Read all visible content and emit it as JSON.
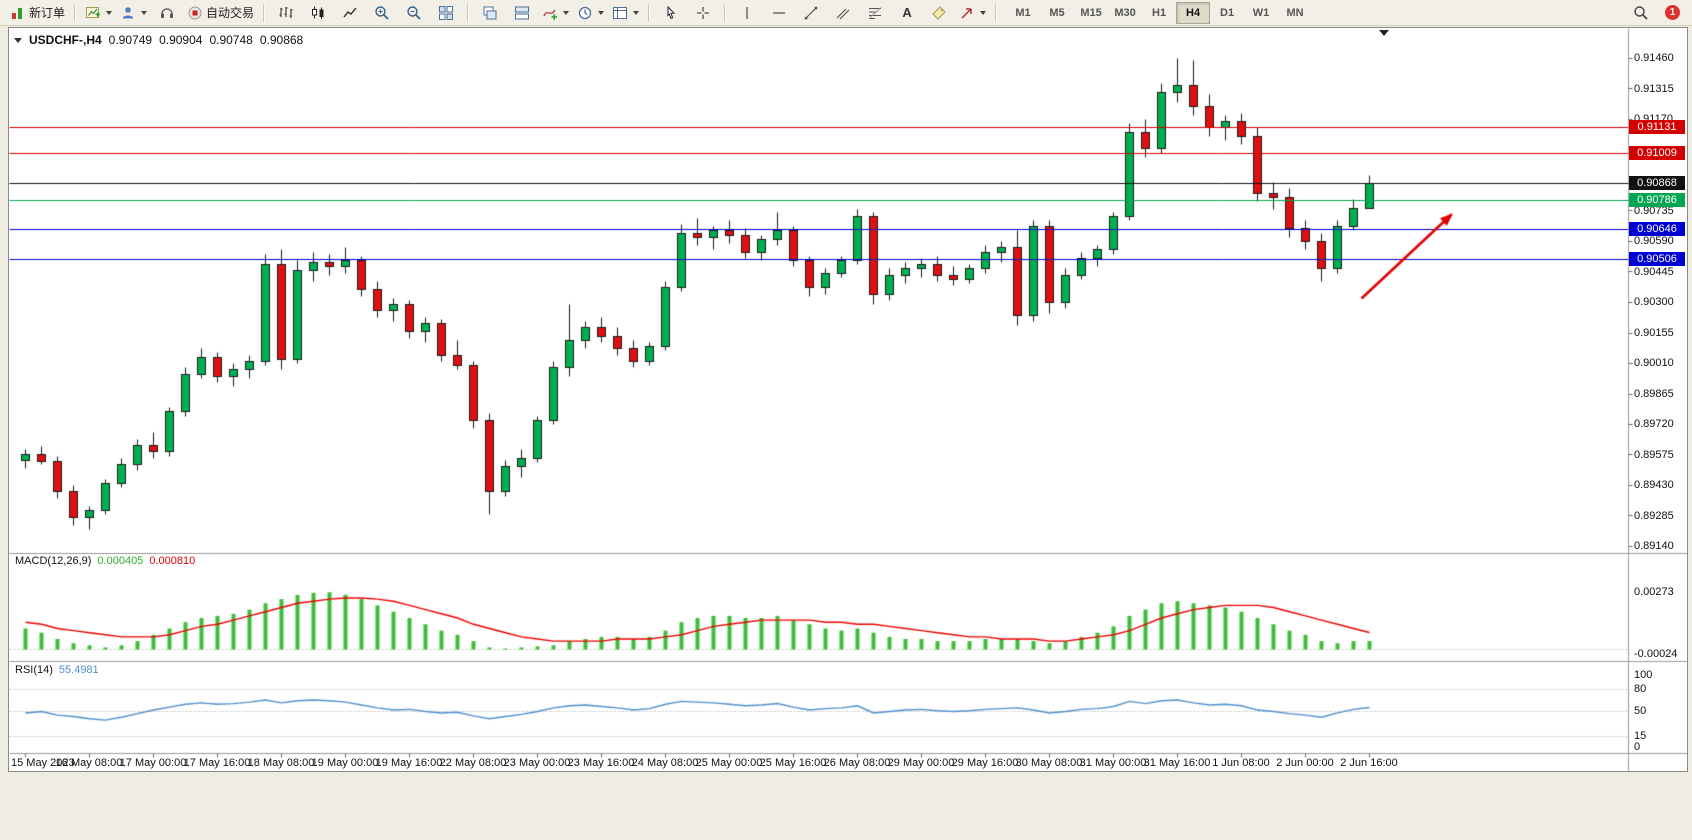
{
  "toolbar": {
    "new_order_label": "新订单",
    "autotrading_label": "自动交易",
    "timeframes": [
      "M1",
      "M5",
      "M15",
      "M30",
      "H1",
      "H4",
      "D1",
      "W1",
      "MN"
    ],
    "active_timeframe": "H4",
    "notification_count": "1"
  },
  "icons": {
    "text_tool_glyph": "A"
  },
  "chart": {
    "title": {
      "symbol_period": "USDCHF-,H4",
      "open": "0.90749",
      "high": "0.90904",
      "low": "0.90748",
      "close": "0.90868"
    },
    "price_axis": {
      "top_price": 0.9146,
      "bottom_price": 0.8914,
      "labels": [
        "0.91460",
        "0.91315",
        "0.91170",
        "0.90735",
        "0.90590",
        "0.90445",
        "0.90300",
        "0.90155",
        "0.90010",
        "0.89865",
        "0.89720",
        "0.89575",
        "0.89430",
        "0.89285",
        "0.89140"
      ]
    },
    "hlines": [
      {
        "price": 0.91131,
        "label": "0.91131",
        "color": "#d40000",
        "role": "resistance"
      },
      {
        "price": 0.91009,
        "label": "0.91009",
        "color": "#d40000",
        "role": "resistance"
      },
      {
        "price": 0.90868,
        "label": "0.90868",
        "color": "#111111",
        "role": "bid-line"
      },
      {
        "price": 0.90786,
        "label": "0.90786",
        "color": "#00a651",
        "role": "level"
      },
      {
        "price": 0.90646,
        "label": "0.90646",
        "color": "#0000d4",
        "role": "support"
      },
      {
        "price": 0.90506,
        "label": "0.90506",
        "color": "#0000d4",
        "role": "support"
      }
    ],
    "time_labels": [
      "15 May 2023",
      "16 May 08:00",
      "17 May 00:00",
      "17 May 16:00",
      "18 May 08:00",
      "19 May 00:00",
      "19 May 16:00",
      "22 May 08:00",
      "23 May 00:00",
      "23 May 16:00",
      "24 May 08:00",
      "25 May 00:00",
      "25 May 16:00",
      "26 May 08:00",
      "29 May 00:00",
      "29 May 16:00",
      "30 May 08:00",
      "31 May 00:00",
      "31 May 16:00",
      "1 Jun 08:00",
      "2 Jun 00:00",
      "2 Jun 16:00"
    ],
    "candles": [
      [
        0.8955,
        0.896,
        0.8951,
        0.89575
      ],
      [
        0.89575,
        0.89615,
        0.8953,
        0.89545
      ],
      [
        0.89545,
        0.8957,
        0.8937,
        0.894
      ],
      [
        0.894,
        0.8943,
        0.8924,
        0.8928
      ],
      [
        0.8928,
        0.8933,
        0.8922,
        0.8931
      ],
      [
        0.8931,
        0.8946,
        0.8929,
        0.8944
      ],
      [
        0.8944,
        0.8956,
        0.8942,
        0.8953
      ],
      [
        0.8953,
        0.8965,
        0.895,
        0.8962
      ],
      [
        0.8962,
        0.8968,
        0.8956,
        0.8959
      ],
      [
        0.8959,
        0.898,
        0.8957,
        0.8978
      ],
      [
        0.8978,
        0.8999,
        0.8976,
        0.8996
      ],
      [
        0.8996,
        0.9008,
        0.8994,
        0.9004
      ],
      [
        0.9004,
        0.9006,
        0.8992,
        0.8995
      ],
      [
        0.8995,
        0.9001,
        0.899,
        0.8998
      ],
      [
        0.8998,
        0.9005,
        0.8994,
        0.9002
      ],
      [
        0.9002,
        0.9053,
        0.9,
        0.9048
      ],
      [
        0.9048,
        0.9055,
        0.8998,
        0.9003
      ],
      [
        0.9003,
        0.905,
        0.9001,
        0.9045
      ],
      [
        0.9045,
        0.9054,
        0.904,
        0.9049
      ],
      [
        0.9049,
        0.9053,
        0.9043,
        0.9047
      ],
      [
        0.9047,
        0.9056,
        0.9044,
        0.905
      ],
      [
        0.905,
        0.9052,
        0.9033,
        0.9036
      ],
      [
        0.9036,
        0.904,
        0.9023,
        0.9026
      ],
      [
        0.9026,
        0.9032,
        0.9021,
        0.9029
      ],
      [
        0.9029,
        0.9031,
        0.9013,
        0.9016
      ],
      [
        0.9016,
        0.9023,
        0.9011,
        0.902
      ],
      [
        0.902,
        0.9022,
        0.9002,
        0.9005
      ],
      [
        0.9005,
        0.9012,
        0.8998,
        0.9
      ],
      [
        0.9,
        0.9002,
        0.897,
        0.8974
      ],
      [
        0.8974,
        0.8977,
        0.8929,
        0.894
      ],
      [
        0.894,
        0.8955,
        0.8938,
        0.8952
      ],
      [
        0.8952,
        0.896,
        0.8947,
        0.8956
      ],
      [
        0.8956,
        0.8976,
        0.8954,
        0.8974
      ],
      [
        0.8974,
        0.9002,
        0.8972,
        0.8999
      ],
      [
        0.8999,
        0.9029,
        0.8995,
        0.9012
      ],
      [
        0.9012,
        0.9021,
        0.9008,
        0.9018
      ],
      [
        0.9018,
        0.9023,
        0.9011,
        0.9014
      ],
      [
        0.9014,
        0.9018,
        0.9005,
        0.9008
      ],
      [
        0.9008,
        0.9012,
        0.8999,
        0.9002
      ],
      [
        0.9002,
        0.9011,
        0.9,
        0.9009
      ],
      [
        0.9009,
        0.904,
        0.9007,
        0.9037
      ],
      [
        0.9037,
        0.9067,
        0.9035,
        0.9063
      ],
      [
        0.9063,
        0.907,
        0.9057,
        0.9061
      ],
      [
        0.9061,
        0.9066,
        0.9055,
        0.9064
      ],
      [
        0.9064,
        0.9069,
        0.9058,
        0.9062
      ],
      [
        0.9062,
        0.9065,
        0.9051,
        0.9054
      ],
      [
        0.9054,
        0.9062,
        0.905,
        0.906
      ],
      [
        0.906,
        0.9073,
        0.9057,
        0.9064
      ],
      [
        0.9064,
        0.9066,
        0.9047,
        0.905
      ],
      [
        0.905,
        0.9052,
        0.9033,
        0.9037
      ],
      [
        0.9037,
        0.9046,
        0.9034,
        0.9044
      ],
      [
        0.9044,
        0.9052,
        0.9042,
        0.905
      ],
      [
        0.905,
        0.9074,
        0.9048,
        0.9071
      ],
      [
        0.9071,
        0.9073,
        0.9029,
        0.9034
      ],
      [
        0.9034,
        0.9046,
        0.9031,
        0.9043
      ],
      [
        0.9043,
        0.9049,
        0.9039,
        0.9046
      ],
      [
        0.9046,
        0.9051,
        0.9042,
        0.9048
      ],
      [
        0.9048,
        0.9052,
        0.904,
        0.9043
      ],
      [
        0.9043,
        0.9047,
        0.9038,
        0.9041
      ],
      [
        0.9041,
        0.9048,
        0.9039,
        0.9046
      ],
      [
        0.9046,
        0.9057,
        0.9044,
        0.9054
      ],
      [
        0.9054,
        0.9059,
        0.9049,
        0.9056
      ],
      [
        0.9056,
        0.9064,
        0.9019,
        0.9024
      ],
      [
        0.9024,
        0.9069,
        0.9021,
        0.9066
      ],
      [
        0.9066,
        0.9069,
        0.9025,
        0.903
      ],
      [
        0.903,
        0.9046,
        0.9027,
        0.9043
      ],
      [
        0.9043,
        0.9054,
        0.9041,
        0.9051
      ],
      [
        0.9051,
        0.9057,
        0.9047,
        0.9055
      ],
      [
        0.9055,
        0.9073,
        0.9053,
        0.9071
      ],
      [
        0.9071,
        0.9115,
        0.9069,
        0.9111
      ],
      [
        0.9111,
        0.9117,
        0.9099,
        0.9103
      ],
      [
        0.9103,
        0.9134,
        0.9101,
        0.913
      ],
      [
        0.913,
        0.9146,
        0.9125,
        0.9133
      ],
      [
        0.9133,
        0.9145,
        0.9119,
        0.9123
      ],
      [
        0.9123,
        0.9129,
        0.9109,
        0.9113
      ],
      [
        0.9113,
        0.9119,
        0.9107,
        0.9116
      ],
      [
        0.9116,
        0.912,
        0.9105,
        0.9109
      ],
      [
        0.9109,
        0.9113,
        0.9078,
        0.9082
      ],
      [
        0.9082,
        0.9087,
        0.9074,
        0.908
      ],
      [
        0.908,
        0.9084,
        0.9061,
        0.9065
      ],
      [
        0.9065,
        0.9069,
        0.9055,
        0.9059
      ],
      [
        0.9059,
        0.9063,
        0.904,
        0.9046
      ],
      [
        0.9046,
        0.9069,
        0.9044,
        0.9066
      ],
      [
        0.9066,
        0.9079,
        0.9064,
        0.90749
      ],
      [
        0.90749,
        0.90904,
        0.90748,
        0.90868
      ]
    ],
    "annotation_arrow": {
      "from": [
        1352,
        270
      ],
      "to": [
        1442,
        186
      ],
      "color": "#e00000"
    }
  },
  "macd": {
    "name": "MACD(12,26,9)",
    "value_main": "0.000405",
    "value_signal": "0.000810",
    "axis_labels": [
      {
        "text": "0.00273",
        "value": 0.00273
      },
      {
        "text": "-0.00024",
        "value": -0.00024
      }
    ],
    "histogram": [
      0.001,
      0.0008,
      0.0005,
      0.0003,
      0.0002,
      0.0001,
      0.0002,
      0.0004,
      0.0007,
      0.001,
      0.0013,
      0.0015,
      0.0016,
      0.0017,
      0.0019,
      0.0022,
      0.0024,
      0.0026,
      0.0027,
      0.00273,
      0.0026,
      0.0024,
      0.0021,
      0.0018,
      0.0015,
      0.0012,
      0.0009,
      0.0007,
      0.0004,
      0.0001,
      5e-05,
      0.0001,
      0.00015,
      0.0002,
      0.0004,
      0.0005,
      0.0006,
      0.0006,
      0.0005,
      0.0006,
      0.0009,
      0.0013,
      0.0015,
      0.0016,
      0.0016,
      0.0015,
      0.0015,
      0.0016,
      0.0014,
      0.0012,
      0.001,
      0.0009,
      0.001,
      0.0008,
      0.0006,
      0.0005,
      0.0005,
      0.0004,
      0.0004,
      0.0004,
      0.0005,
      0.0005,
      0.0005,
      0.0004,
      0.0003,
      0.0004,
      0.0006,
      0.0008,
      0.0011,
      0.0016,
      0.0019,
      0.0022,
      0.0023,
      0.0022,
      0.0021,
      0.002,
      0.0018,
      0.0015,
      0.0012,
      0.0009,
      0.0007,
      0.0004,
      0.0003,
      0.0004,
      0.000405
    ],
    "signal": [
      0.0013,
      0.0012,
      0.001,
      0.0009,
      0.0008,
      0.0007,
      0.0006,
      0.0006,
      0.0006,
      0.0007,
      0.0009,
      0.0011,
      0.0012,
      0.0014,
      0.0016,
      0.0018,
      0.002,
      0.0022,
      0.0023,
      0.0024,
      0.00245,
      0.00245,
      0.0024,
      0.0023,
      0.0021,
      0.0019,
      0.0017,
      0.0015,
      0.0012,
      0.001,
      0.0008,
      0.0006,
      0.0005,
      0.0004,
      0.0004,
      0.0004,
      0.0004,
      0.0005,
      0.0005,
      0.0005,
      0.0006,
      0.0007,
      0.0009,
      0.0011,
      0.0012,
      0.0013,
      0.0014,
      0.0014,
      0.0014,
      0.0014,
      0.0013,
      0.0013,
      0.0012,
      0.0012,
      0.0011,
      0.001,
      0.0009,
      0.0008,
      0.0007,
      0.0006,
      0.0006,
      0.0005,
      0.0005,
      0.0005,
      0.0004,
      0.0004,
      0.0005,
      0.0006,
      0.0007,
      0.0009,
      0.0012,
      0.0015,
      0.0017,
      0.0019,
      0.002,
      0.0021,
      0.0021,
      0.0021,
      0.002,
      0.0018,
      0.0016,
      0.0014,
      0.0012,
      0.001,
      0.00081
    ]
  },
  "rsi": {
    "name": "RSI(14)",
    "value": "55.4981",
    "axis_labels": [
      {
        "text": "100",
        "value": 100
      },
      {
        "text": "80",
        "value": 80
      },
      {
        "text": "50",
        "value": 50
      },
      {
        "text": "15",
        "value": 15
      },
      {
        "text": "0",
        "value": 0
      }
    ],
    "levels": [
      80,
      50,
      15
    ],
    "values": [
      48,
      50,
      45,
      43,
      40,
      38,
      42,
      47,
      52,
      56,
      60,
      62,
      60,
      61,
      63,
      66,
      62,
      65,
      66,
      65,
      63,
      59,
      55,
      52,
      53,
      50,
      48,
      49,
      44,
      40,
      43,
      46,
      50,
      55,
      58,
      59,
      57,
      55,
      52,
      54,
      60,
      64,
      63,
      62,
      60,
      58,
      59,
      61,
      56,
      52,
      54,
      55,
      58,
      48,
      50,
      52,
      53,
      51,
      50,
      51,
      53,
      54,
      55,
      52,
      48,
      50,
      53,
      54,
      57,
      64,
      61,
      65,
      66,
      62,
      59,
      60,
      58,
      52,
      50,
      47,
      45,
      42,
      48,
      53,
      55.4981
    ]
  },
  "colors": {
    "bull": "#00b050",
    "bear": "#e01010",
    "wick": "#1a1a1a",
    "outline": "#1a1a1a",
    "macd_hist": "#3cbe3c",
    "macd_signal": "#f00000",
    "rsi_line": "#4f8fcc",
    "separator": "#9a9a9a",
    "level_dash": "#c0c0c0",
    "tick": "#666666"
  }
}
